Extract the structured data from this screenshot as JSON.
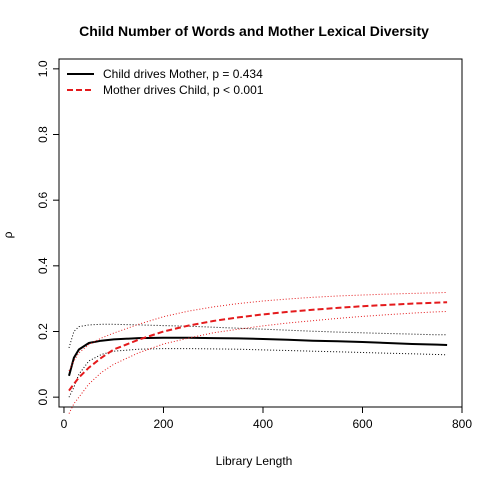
{
  "chart_data": {
    "type": "line",
    "title": "Child Number of Words and Mother Lexical Diversity",
    "xlabel": "Library Length",
    "ylabel": "ρ",
    "xlim": [
      -10,
      800
    ],
    "ylim": [
      -0.03,
      1.03
    ],
    "x_ticks": [
      0,
      200,
      400,
      600,
      800
    ],
    "x_tick_labels": [
      "0",
      "200",
      "400",
      "600",
      "800"
    ],
    "y_ticks": [
      0.0,
      0.2,
      0.4,
      0.6,
      0.8,
      1.0
    ],
    "y_tick_labels": [
      "0.0",
      "0.2",
      "0.4",
      "0.6",
      "0.8",
      "1.0"
    ],
    "legend_position": "top-left",
    "x": [
      10,
      20,
      30,
      50,
      75,
      100,
      150,
      200,
      250,
      300,
      350,
      400,
      450,
      500,
      550,
      600,
      650,
      700,
      750,
      770
    ],
    "series": [
      {
        "name": "Child drives Mother, p = 0.434",
        "color": "#000000",
        "style": "solid",
        "values": [
          0.065,
          0.12,
          0.145,
          0.165,
          0.172,
          0.176,
          0.18,
          0.181,
          0.181,
          0.18,
          0.179,
          0.177,
          0.175,
          0.172,
          0.17,
          0.168,
          0.165,
          0.162,
          0.16,
          0.159
        ],
        "lower": [
          0.0,
          0.03,
          0.07,
          0.11,
          0.13,
          0.14,
          0.146,
          0.148,
          0.148,
          0.147,
          0.146,
          0.144,
          0.142,
          0.14,
          0.138,
          0.136,
          0.134,
          0.132,
          0.13,
          0.129
        ],
        "upper": [
          0.15,
          0.2,
          0.215,
          0.22,
          0.222,
          0.222,
          0.22,
          0.218,
          0.216,
          0.213,
          0.21,
          0.207,
          0.204,
          0.201,
          0.198,
          0.196,
          0.194,
          0.192,
          0.19,
          0.19
        ]
      },
      {
        "name": "Mother drives Child, p < 0.001",
        "color": "#e41a1c",
        "style": "dashed",
        "values": [
          0.02,
          0.04,
          0.06,
          0.09,
          0.12,
          0.145,
          0.175,
          0.2,
          0.218,
          0.232,
          0.243,
          0.252,
          0.26,
          0.266,
          0.272,
          0.277,
          0.281,
          0.285,
          0.288,
          0.289
        ],
        "lower": [
          -0.05,
          -0.02,
          0.0,
          0.04,
          0.075,
          0.1,
          0.135,
          0.162,
          0.18,
          0.196,
          0.207,
          0.217,
          0.226,
          0.233,
          0.24,
          0.246,
          0.251,
          0.256,
          0.26,
          0.261
        ],
        "upper": [
          0.08,
          0.11,
          0.135,
          0.16,
          0.18,
          0.195,
          0.222,
          0.245,
          0.262,
          0.275,
          0.285,
          0.293,
          0.299,
          0.304,
          0.308,
          0.311,
          0.314,
          0.316,
          0.318,
          0.319
        ]
      }
    ]
  }
}
